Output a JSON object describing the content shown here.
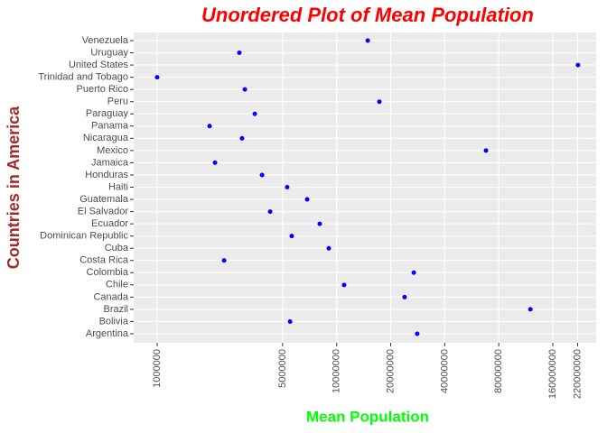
{
  "chart_data": {
    "type": "scatter",
    "title": "Unordered Plot of Mean Population",
    "x_label": "Mean Population",
    "y_label": "Countries in America",
    "categories": [
      "Argentina",
      "Bolivia",
      "Brazil",
      "Canada",
      "Chile",
      "Colombia",
      "Costa Rica",
      "Cuba",
      "Dominican Republic",
      "Ecuador",
      "El Salvador",
      "Guatemala",
      "Haiti",
      "Honduras",
      "Jamaica",
      "Mexico",
      "Nicaragua",
      "Panama",
      "Paraguay",
      "Peru",
      "Puerto Rico",
      "Trinidad and Tobago",
      "United States",
      "Uruguay",
      "Venezuela"
    ],
    "values": [
      28100000,
      5500000,
      120000000,
      23900000,
      11000000,
      26900000,
      2360000,
      9040000,
      5620000,
      8050000,
      4260000,
      6850000,
      5300000,
      3840000,
      2100000,
      67900000,
      2970000,
      1960000,
      3500000,
      17300000,
      3080000,
      1000000,
      221000000,
      2870000,
      14900000
    ],
    "color": "#0000ff",
    "x_log": true,
    "xlim": [
      740000,
      279000000
    ],
    "xticks": [
      1000000,
      5000000,
      10000000,
      20000000,
      40000000,
      80000000,
      160000000,
      220000000
    ],
    "grid": true
  }
}
